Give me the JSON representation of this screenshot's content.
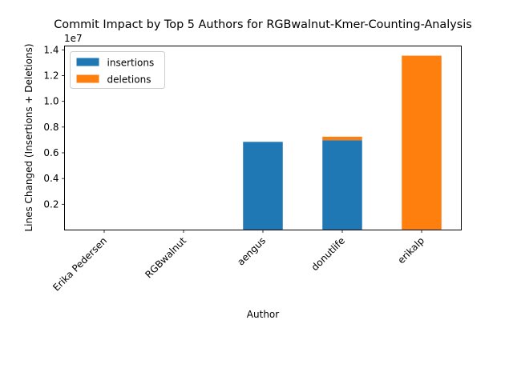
{
  "chart_data": {
    "type": "bar",
    "stacked": true,
    "title": "Commit Impact by Top 5 Authors for RGBwalnut-Kmer-Counting-Analysis",
    "xlabel": "Author",
    "ylabel": "Lines Changed (Insertions + Deletions)",
    "y_offset_text": "1e7",
    "categories": [
      "Erika Pedersen",
      "RGBwalnut",
      "aengus",
      "donutlife",
      "erikalp"
    ],
    "series": [
      {
        "name": "insertions",
        "color": "#1f77b4",
        "values": [
          0,
          0,
          6850000,
          6980000,
          0
        ]
      },
      {
        "name": "deletions",
        "color": "#ff7f0e",
        "values": [
          0,
          0,
          0,
          270000,
          13550000
        ]
      }
    ],
    "ylim": [
      0,
      14300000
    ],
    "yticks": [
      2000000,
      4000000,
      6000000,
      8000000,
      10000000,
      12000000,
      14000000
    ],
    "ytick_labels": [
      "0.2",
      "0.4",
      "0.6",
      "0.8",
      "1.0",
      "1.2",
      "1.4"
    ],
    "grid": false,
    "legend_position": "top-left"
  }
}
